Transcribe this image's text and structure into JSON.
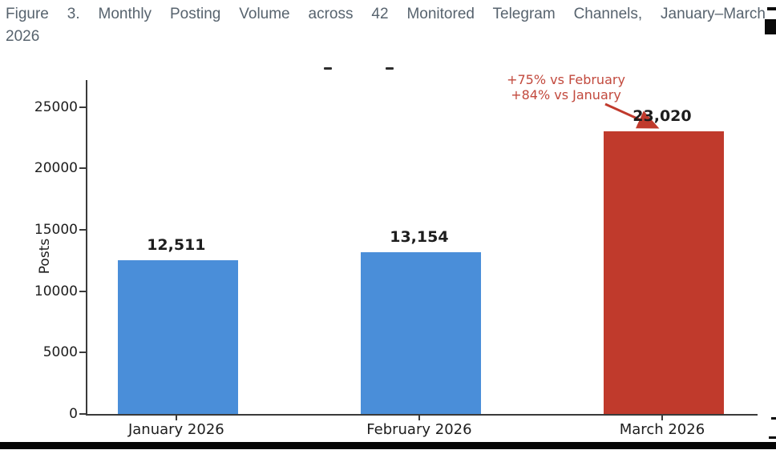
{
  "figure_caption": {
    "line1": "Figure 3. Monthly Posting Volume across 42 Monitored Telegram Channels, January–March",
    "line2": "2026"
  },
  "chart_data": {
    "type": "bar",
    "title": "",
    "categories": [
      "January 2026",
      "February 2026",
      "March 2026"
    ],
    "values": [
      12511,
      13154,
      23020
    ],
    "value_labels": [
      "12,511",
      "13,154",
      "23,020"
    ],
    "series": [
      {
        "name": "Posts",
        "values": [
          12511,
          13154,
          23020
        ]
      }
    ],
    "xlabel": "",
    "ylabel": "Posts",
    "yticks": [
      0,
      5000,
      10000,
      15000,
      20000,
      25000
    ],
    "ylim": [
      0,
      27200
    ],
    "grid": false,
    "legend": "none",
    "bar_colors": [
      "#4a8ed9",
      "#4a8ed9",
      "#c03a2c"
    ],
    "annotation": {
      "lines": [
        "+75% vs February",
        "+84% vs January"
      ],
      "color": "#c2493d",
      "arrow_color": "#c03a2c",
      "target": "March 2026"
    }
  },
  "colors": {
    "caption_text": "#57636e",
    "axis": "#3a3a3a",
    "value_label": "#1d1d1d",
    "bar_blue": "#4a8ed9",
    "bar_red": "#c03a2c",
    "page_rule": "#050505"
  }
}
